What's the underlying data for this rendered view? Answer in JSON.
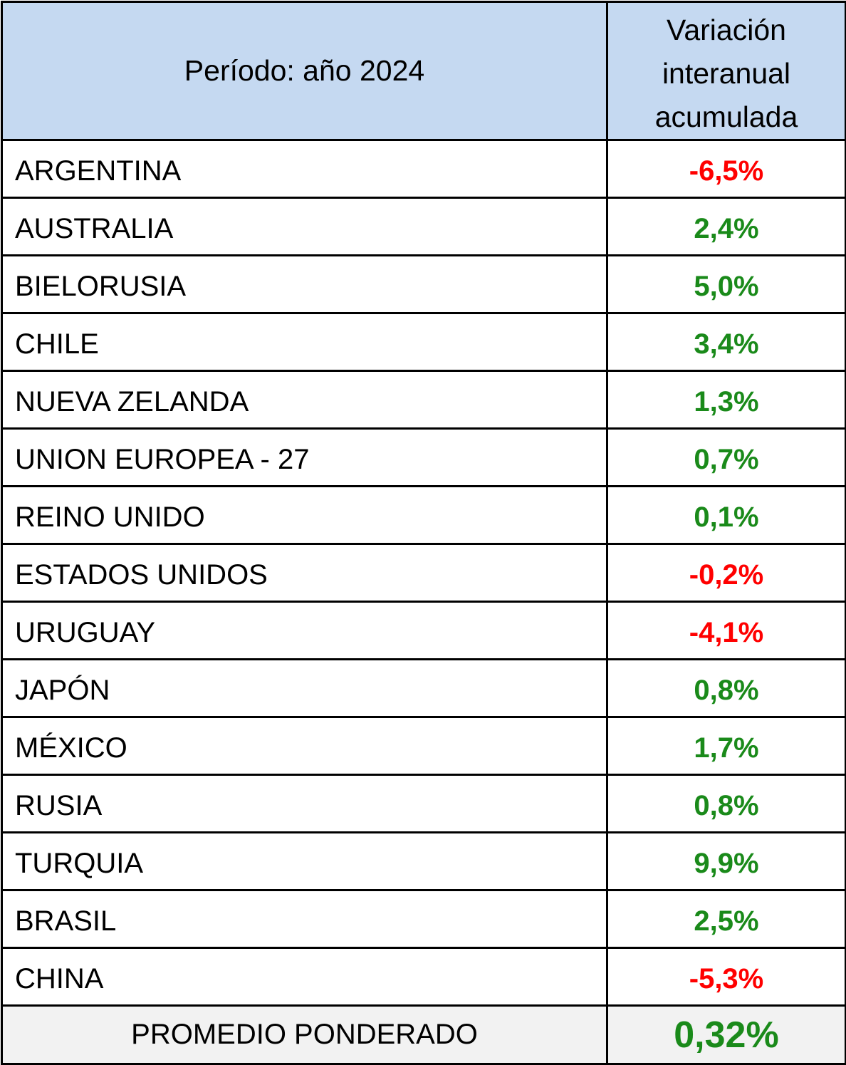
{
  "table": {
    "header": {
      "period": "Período: año 2024",
      "variation_lines": [
        "Variación",
        "interanual",
        "acumulada"
      ]
    },
    "colors": {
      "header_bg": "#c5d9f1",
      "positive": "#1a8a1a",
      "negative": "#ff0000",
      "footer_bg": "#f2f2f2"
    },
    "rows": [
      {
        "country": "ARGENTINA",
        "value": "-6,5%",
        "sign": "neg"
      },
      {
        "country": "AUSTRALIA",
        "value": "2,4%",
        "sign": "pos"
      },
      {
        "country": "BIELORUSIA",
        "value": "5,0%",
        "sign": "pos"
      },
      {
        "country": "CHILE",
        "value": "3,4%",
        "sign": "pos"
      },
      {
        "country": "NUEVA ZELANDA",
        "value": "1,3%",
        "sign": "pos"
      },
      {
        "country": "UNION EUROPEA - 27",
        "value": "0,7%",
        "sign": "pos"
      },
      {
        "country": "REINO UNIDO",
        "value": "0,1%",
        "sign": "pos"
      },
      {
        "country": "ESTADOS UNIDOS",
        "value": "-0,2%",
        "sign": "neg"
      },
      {
        "country": "URUGUAY",
        "value": "-4,1%",
        "sign": "neg"
      },
      {
        "country": "JAPÓN",
        "value": "0,8%",
        "sign": "pos"
      },
      {
        "country": "MÉXICO",
        "value": "1,7%",
        "sign": "pos"
      },
      {
        "country": "RUSIA",
        "value": "0,8%",
        "sign": "pos"
      },
      {
        "country": "TURQUIA",
        "value": "9,9%",
        "sign": "pos"
      },
      {
        "country": "BRASIL",
        "value": "2,5%",
        "sign": "pos"
      },
      {
        "country": "CHINA",
        "value": "-5,3%",
        "sign": "neg"
      }
    ],
    "footer": {
      "label": "PROMEDIO PONDERADO",
      "value": "0,32%"
    }
  }
}
